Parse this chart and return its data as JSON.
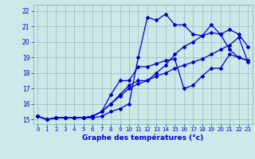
{
  "xlabel": "Graphe des températures (°c)",
  "background_color": "#cce8e8",
  "line_color": "#0000cc",
  "xlim": [
    -0.5,
    23.5
  ],
  "ylim": [
    14.7,
    22.4
  ],
  "yticks": [
    15,
    16,
    17,
    18,
    19,
    20,
    21,
    22
  ],
  "xticks": [
    0,
    1,
    2,
    3,
    4,
    5,
    6,
    7,
    8,
    9,
    10,
    11,
    12,
    13,
    14,
    15,
    16,
    17,
    18,
    19,
    20,
    21,
    22,
    23
  ],
  "curves": [
    [
      15.2,
      15.0,
      15.1,
      15.1,
      15.1,
      15.1,
      15.1,
      15.2,
      15.5,
      15.7,
      16.0,
      19.0,
      21.6,
      21.4,
      21.8,
      21.1,
      21.1,
      20.5,
      20.4,
      21.1,
      20.5,
      19.5,
      19.0,
      18.8
    ],
    [
      15.2,
      15.0,
      15.1,
      15.1,
      15.1,
      15.1,
      15.2,
      15.5,
      16.6,
      17.5,
      17.5,
      18.4,
      18.4,
      18.6,
      18.8,
      18.9,
      17.0,
      17.2,
      17.8,
      18.3,
      18.3,
      19.2,
      19.0,
      18.8
    ],
    [
      15.2,
      15.0,
      15.1,
      15.1,
      15.1,
      15.1,
      15.2,
      15.5,
      16.0,
      16.6,
      17.2,
      17.5,
      17.5,
      18.0,
      18.5,
      19.2,
      19.7,
      20.0,
      20.4,
      20.6,
      20.5,
      20.8,
      20.5,
      19.7
    ],
    [
      15.2,
      15.0,
      15.1,
      15.1,
      15.1,
      15.1,
      15.2,
      15.5,
      16.0,
      16.5,
      17.0,
      17.3,
      17.5,
      17.8,
      18.0,
      18.3,
      18.5,
      18.7,
      18.9,
      19.2,
      19.5,
      19.8,
      20.3,
      18.7
    ]
  ]
}
